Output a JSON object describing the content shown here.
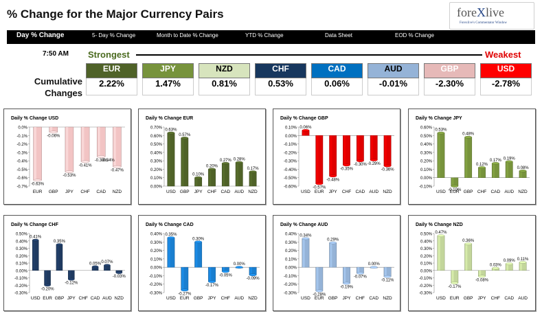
{
  "header": {
    "title": "% Change for the Major Currency Pairs",
    "logo": {
      "brand_part1": "fore",
      "brand_part2": "X",
      "brand_part3": "live",
      "tagline": "Forexlive's Commentator Window"
    }
  },
  "nav": [
    {
      "label": "Day % Change",
      "active": true
    },
    {
      "label": "5- Day % Change",
      "active": false
    },
    {
      "label": "Month to Date % Change",
      "active": false
    },
    {
      "label": "YTD % Change",
      "active": false
    },
    {
      "label": "Data Sheet",
      "active": false
    },
    {
      "label": "EOD % Change",
      "active": false
    }
  ],
  "summary": {
    "time": "7:50 AM",
    "strongest_label": "Strongest",
    "weakest_label": "Weakest",
    "cumulative_label_1": "Cumulative",
    "cumulative_label_2": "Changes",
    "currencies": [
      {
        "code": "EUR",
        "value": "2.22%",
        "bg": "#4f6228",
        "fg": "#ffffff"
      },
      {
        "code": "JPY",
        "value": "1.47%",
        "bg": "#77933c",
        "fg": "#ffffff"
      },
      {
        "code": "NZD",
        "value": "0.81%",
        "bg": "#d7e4bd",
        "fg": "#000000"
      },
      {
        "code": "CHF",
        "value": "0.53%",
        "bg": "#17375e",
        "fg": "#ffffff"
      },
      {
        "code": "CAD",
        "value": "0.06%",
        "bg": "#0070c0",
        "fg": "#ffffff"
      },
      {
        "code": "AUD",
        "value": "-0.01%",
        "bg": "#95b3d7",
        "fg": "#000000"
      },
      {
        "code": "GBP",
        "value": "-2.30%",
        "bg": "#e6b9b8",
        "fg": "#ffffff"
      },
      {
        "code": "USD",
        "value": "-2.78%",
        "bg": "#ff0000",
        "fg": "#ffffff"
      }
    ]
  },
  "chart_data": [
    {
      "type": "bar",
      "title": "Daily % Change USD",
      "color": "#f2c4c4",
      "ylim": [
        -0.7,
        0
      ],
      "step": 0.1,
      "categories": [
        "EUR",
        "GBP",
        "JPY",
        "CHF",
        "CAD",
        "NZD"
      ],
      "values": [
        -0.63,
        -0.06,
        -0.53,
        -0.41,
        -0.35,
        -0.47
      ],
      "labels": [
        "-0.63%",
        "-0.06%",
        "-0.53%",
        "-0.41%",
        "-0.35%",
        "-0.47%"
      ],
      "extra_labels": [
        "-0.34%"
      ],
      "ticks": [
        "0.0%",
        "-0.1%",
        "-0.2%",
        "-0.3%",
        "-0.4%",
        "-0.5%",
        "-0.6%",
        "-0.7%"
      ]
    },
    {
      "type": "bar",
      "title": "Daily % Change EUR",
      "color": "#4f6228",
      "ylim": [
        0,
        0.7
      ],
      "step": 0.1,
      "categories": [
        "USD",
        "GBP",
        "JPY",
        "CHF",
        "CAD",
        "AUD",
        "NZD"
      ],
      "values": [
        0.63,
        0.57,
        0.1,
        0.2,
        0.27,
        0.28,
        0.17
      ],
      "labels": [
        "0.63%",
        "0.57%",
        "0.10%",
        "0.20%",
        "0.27%",
        "0.28%",
        "0.17%"
      ],
      "ticks": [
        "0.70%",
        "0.60%",
        "0.50%",
        "0.40%",
        "0.30%",
        "0.20%",
        "0.10%",
        "0.00%"
      ]
    },
    {
      "type": "bar",
      "title": "Daily % Change GBP",
      "color": "#e00000",
      "ylim": [
        -0.6,
        0.1
      ],
      "step": 0.1,
      "categories": [
        "USD",
        "EUR",
        "JPY",
        "CHF",
        "CAD",
        "AUD",
        "NZD"
      ],
      "values": [
        0.06,
        -0.57,
        -0.48,
        -0.35,
        -0.3,
        -0.29,
        -0.36
      ],
      "labels": [
        "0.06%",
        "-0.57%",
        "-0.48%",
        "-0.35%",
        "-0.30%",
        "-0.29%",
        "-0.36%"
      ],
      "ticks": [
        "0.10%",
        "0.00%",
        "-0.10%",
        "-0.20%",
        "-0.30%",
        "-0.40%",
        "-0.50%",
        "-0.60%"
      ]
    },
    {
      "type": "bar",
      "title": "Daily % Change JPY",
      "color": "#77933c",
      "ylim": [
        -0.1,
        0.6
      ],
      "step": 0.1,
      "categories": [
        "USD",
        "EUR",
        "GBP",
        "CHF",
        "CAD",
        "AUD",
        "NZD"
      ],
      "values": [
        0.53,
        -0.1,
        0.48,
        0.12,
        0.17,
        0.19,
        0.08
      ],
      "labels": [
        "0.53%",
        "-0.10%",
        "0.48%",
        "0.12%",
        "0.17%",
        "0.19%",
        "0.08%"
      ],
      "ticks": [
        "0.60%",
        "0.50%",
        "0.40%",
        "0.30%",
        "0.20%",
        "0.10%",
        "0.00%",
        "-0.10%"
      ]
    },
    {
      "type": "bar",
      "title": "Daily % Change CHF",
      "color": "#1f3a60",
      "ylim": [
        -0.3,
        0.5
      ],
      "step": 0.1,
      "categories": [
        "USD",
        "EUR",
        "GBP",
        "JPY",
        "CHF",
        "CAD",
        "AUD",
        "NZD"
      ],
      "values": [
        0.41,
        -0.2,
        0.35,
        -0.12,
        0.05,
        0.07,
        -0.03
      ],
      "cat_values_index": [
        0,
        1,
        2,
        3,
        5,
        6,
        7
      ],
      "labels": [
        "0.41%",
        "-0.20%",
        "0.35%",
        "-0.12%",
        "0.05%",
        "0.07%",
        "-0.03%"
      ],
      "ticks": [
        "0.50%",
        "0.40%",
        "0.30%",
        "0.20%",
        "0.10%",
        "0.00%",
        "-0.10%",
        "-0.20%",
        "-0.30%"
      ]
    },
    {
      "type": "bar",
      "title": "Daily % Change CAD",
      "color": "#1a7fd0",
      "ylim": [
        -0.3,
        0.4
      ],
      "step": 0.1,
      "categories": [
        "USD",
        "EUR",
        "GBP",
        "JPY",
        "CHF",
        "AUD",
        "NZD"
      ],
      "values": [
        0.35,
        -0.27,
        0.3,
        -0.17,
        -0.05,
        0.0,
        -0.09
      ],
      "labels": [
        "0.35%",
        "-0.27%",
        "0.30%",
        "-0.17%",
        "-0.05%",
        "0.00%",
        "-0.09%"
      ],
      "ticks": [
        "0.40%",
        "0.30%",
        "0.20%",
        "0.10%",
        "0.00%",
        "-0.10%",
        "-0.20%",
        "-0.30%"
      ]
    },
    {
      "type": "bar",
      "title": "Daily % Change AUD",
      "color": "#95b3d7",
      "ylim": [
        -0.3,
        0.4
      ],
      "step": 0.1,
      "categories": [
        "USD",
        "EUR",
        "GBP",
        "JPY",
        "CHF",
        "CAD",
        "NZD"
      ],
      "values": [
        0.34,
        -0.28,
        0.29,
        -0.19,
        -0.07,
        0.0,
        -0.11
      ],
      "labels": [
        "0.34%",
        "-0.28%",
        "0.29%",
        "-0.19%",
        "-0.07%",
        "0.00%",
        "-0.11%"
      ],
      "ticks": [
        "0.40%",
        "0.30%",
        "0.20%",
        "0.10%",
        "0.00%",
        "-0.10%",
        "-0.20%",
        "-0.30%"
      ]
    },
    {
      "type": "bar",
      "title": "Daily % Change NZD",
      "color": "#c3d69b",
      "ylim": [
        -0.3,
        0.5
      ],
      "step": 0.1,
      "categories": [
        "USD",
        "EUR",
        "GBP",
        "JPY",
        "CHF",
        "CAD",
        "AUD"
      ],
      "values": [
        0.47,
        -0.17,
        0.36,
        -0.08,
        0.03,
        0.09,
        0.11
      ],
      "labels": [
        "0.47%",
        "-0.17%",
        "0.36%",
        "-0.08%",
        "0.03%",
        "0.09%",
        "0.11%"
      ],
      "ticks": [
        "0.50%",
        "0.40%",
        "0.30%",
        "0.20%",
        "0.10%",
        "0.00%",
        "-0.10%",
        "-0.20%",
        "-0.30%"
      ]
    }
  ]
}
